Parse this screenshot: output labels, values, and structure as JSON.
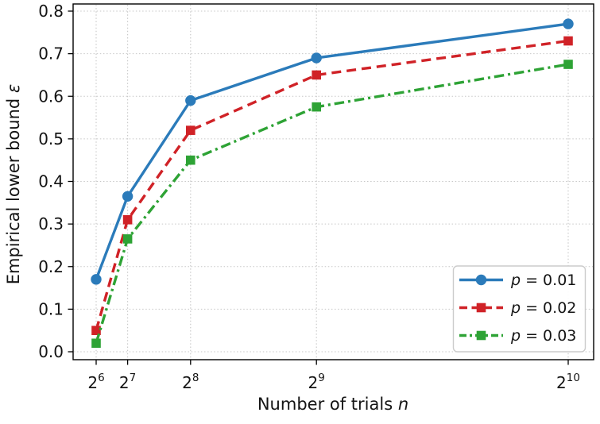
{
  "figure": {
    "background": "#ffffff"
  },
  "chart_data": {
    "type": "line",
    "title": "",
    "xlabel": {
      "text": "Number of trials ",
      "symbol": "n"
    },
    "ylabel": {
      "text": "Empirical lower bound ",
      "symbol": "ε"
    },
    "x_scale": "linear, tick marks at powers of 2",
    "x": [
      64,
      128,
      256,
      512,
      1024
    ],
    "x_tick_labels": [
      {
        "base": "2",
        "exp": "6"
      },
      {
        "base": "2",
        "exp": "7"
      },
      {
        "base": "2",
        "exp": "8"
      },
      {
        "base": "2",
        "exp": "9"
      },
      {
        "base": "2",
        "exp": "10"
      }
    ],
    "yticks": [
      0.0,
      0.1,
      0.2,
      0.3,
      0.4,
      0.5,
      0.6,
      0.7,
      0.8
    ],
    "ylim": [
      -0.019,
      0.817
    ],
    "xlim": [
      16,
      1072
    ],
    "grid": true,
    "grid_style": "dotted",
    "legend_position": "lower right",
    "series": [
      {
        "label_prefix": "p",
        "label_rest": " = 0.01",
        "label": "p = 0.01",
        "color": "#2b7bba",
        "linestyle": "solid",
        "marker": "circle",
        "values": [
          0.17,
          0.365,
          0.59,
          0.69,
          0.77
        ]
      },
      {
        "label_prefix": "p",
        "label_rest": " = 0.02",
        "label": "p = 0.02",
        "color": "#d02227",
        "linestyle": "dashed",
        "marker": "square",
        "values": [
          0.05,
          0.31,
          0.52,
          0.65,
          0.73
        ]
      },
      {
        "label_prefix": "p",
        "label_rest": " = 0.03",
        "label": "p = 0.03",
        "color": "#2ea335",
        "linestyle": "dashdot",
        "marker": "square",
        "values": [
          0.02,
          0.265,
          0.45,
          0.575,
          0.675
        ]
      }
    ],
    "colors": {
      "grid": "#c7c7c7",
      "axis": "#000000",
      "text": "#141414",
      "legend_border": "#cccccc",
      "legend_bg": "#ffffff"
    }
  }
}
